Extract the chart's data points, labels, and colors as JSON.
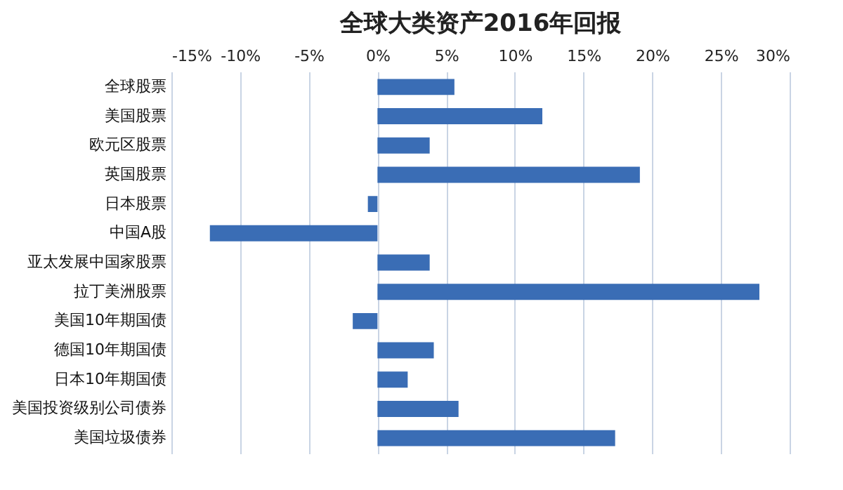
{
  "chart_data": {
    "type": "bar",
    "orientation": "horizontal",
    "title": "全球大类资产2016年回报",
    "categories": [
      "全球股票",
      "美国股票",
      "欧元区股票",
      "英国股票",
      "日本股票",
      "中国A股",
      "亚太发展中国家股票",
      "拉丁美洲股票",
      "美国10年期国债",
      "德国10年期国债",
      "日本10年期国债",
      "美国投资级别公司债券",
      "美国垃圾债券"
    ],
    "values": [
      5.6,
      12.0,
      3.8,
      19.1,
      -0.7,
      -12.2,
      3.8,
      27.8,
      -1.8,
      4.1,
      2.2,
      5.9,
      17.3
    ],
    "color": "#3a6db5",
    "xlim": [
      -15,
      30
    ],
    "xticks": [
      {
        "value": -15,
        "label": "-15%"
      },
      {
        "value": -10,
        "label": "-10%"
      },
      {
        "value": -5,
        "label": "-5%"
      },
      {
        "value": 0,
        "label": "0%"
      },
      {
        "value": 5,
        "label": "5%"
      },
      {
        "value": 10,
        "label": "10%"
      },
      {
        "value": 15,
        "label": "15%"
      },
      {
        "value": 20,
        "label": "20%"
      },
      {
        "value": 25,
        "label": "25%"
      },
      {
        "value": 30,
        "label": "30%"
      }
    ],
    "grid": "x"
  }
}
